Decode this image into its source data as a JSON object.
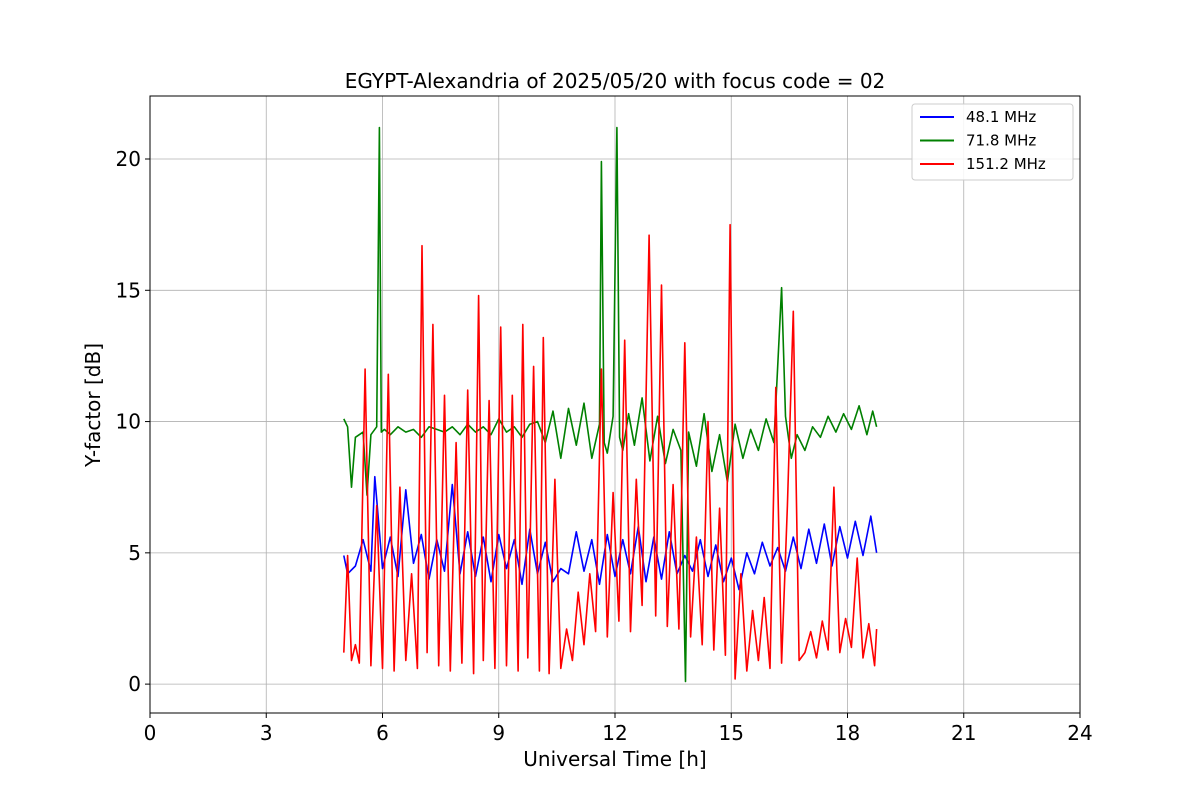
{
  "chart_data": {
    "type": "line",
    "title": "EGYPT-Alexandria of 2025/05/20 with focus code = 02",
    "xlabel": "Universal Time [h]",
    "ylabel": "Y-factor [dB]",
    "xlim": [
      0,
      24
    ],
    "ylim": [
      -1.1,
      22.4
    ],
    "xticks": [
      "0",
      "3",
      "6",
      "9",
      "12",
      "15",
      "18",
      "21",
      "24"
    ],
    "yticks": [
      "0",
      "5",
      "10",
      "15",
      "20"
    ],
    "grid": true,
    "legend_position": "top-right",
    "series": [
      {
        "name": "  48.1 MHz",
        "color": "#0000ff",
        "x": [
          5.0,
          5.1,
          5.3,
          5.5,
          5.7,
          5.8,
          6.0,
          6.2,
          6.4,
          6.6,
          6.8,
          7.0,
          7.2,
          7.4,
          7.6,
          7.8,
          8.0,
          8.2,
          8.4,
          8.6,
          8.8,
          9.0,
          9.2,
          9.4,
          9.6,
          9.8,
          10.0,
          10.2,
          10.4,
          10.6,
          10.8,
          11.0,
          11.2,
          11.4,
          11.6,
          11.8,
          12.0,
          12.2,
          12.4,
          12.6,
          12.8,
          13.0,
          13.2,
          13.4,
          13.6,
          13.8,
          14.0,
          14.2,
          14.4,
          14.6,
          14.8,
          15.0,
          15.2,
          15.4,
          15.6,
          15.8,
          16.0,
          16.2,
          16.4,
          16.6,
          16.8,
          17.0,
          17.2,
          17.4,
          17.6,
          17.8,
          18.0,
          18.2,
          18.4,
          18.6,
          18.75
        ],
        "y": [
          4.9,
          4.2,
          4.5,
          5.5,
          4.3,
          7.9,
          4.4,
          5.6,
          4.1,
          7.4,
          4.6,
          5.7,
          4.0,
          5.5,
          4.3,
          7.6,
          4.2,
          5.8,
          4.1,
          5.6,
          3.9,
          5.7,
          4.4,
          5.5,
          3.8,
          5.9,
          4.2,
          5.4,
          3.9,
          4.4,
          4.2,
          5.8,
          4.3,
          5.5,
          3.8,
          5.7,
          4.1,
          5.5,
          4.2,
          6.0,
          3.9,
          5.6,
          4.0,
          5.8,
          4.2,
          4.9,
          4.3,
          5.5,
          4.1,
          5.3,
          3.9,
          4.8,
          3.6,
          5.0,
          4.2,
          5.4,
          4.5,
          5.2,
          4.3,
          5.6,
          4.4,
          5.9,
          4.6,
          6.1,
          4.5,
          6.0,
          4.8,
          6.2,
          4.9,
          6.4,
          5.0
        ]
      },
      {
        "name": "  71.8 MHz",
        "color": "#008000",
        "x": [
          5.0,
          5.1,
          5.2,
          5.3,
          5.5,
          5.6,
          5.7,
          5.85,
          5.92,
          5.97,
          6.05,
          6.2,
          6.4,
          6.6,
          6.8,
          7.0,
          7.2,
          7.4,
          7.6,
          7.8,
          8.0,
          8.2,
          8.4,
          8.6,
          8.8,
          9.0,
          9.2,
          9.4,
          9.6,
          9.8,
          10.0,
          10.2,
          10.4,
          10.6,
          10.8,
          11.0,
          11.2,
          11.4,
          11.6,
          11.65,
          11.72,
          11.8,
          11.95,
          12.05,
          12.12,
          12.2,
          12.35,
          12.5,
          12.7,
          12.9,
          13.1,
          13.3,
          13.5,
          13.7,
          13.82,
          13.9,
          14.1,
          14.3,
          14.5,
          14.7,
          14.9,
          15.1,
          15.3,
          15.5,
          15.7,
          15.9,
          16.1,
          16.3,
          16.4,
          16.55,
          16.7,
          16.9,
          17.1,
          17.3,
          17.5,
          17.7,
          17.9,
          18.1,
          18.3,
          18.5,
          18.65,
          18.75
        ],
        "y": [
          10.1,
          9.8,
          7.5,
          9.4,
          9.6,
          7.2,
          9.5,
          9.8,
          21.2,
          9.6,
          9.7,
          9.5,
          9.8,
          9.6,
          9.7,
          9.4,
          9.8,
          9.7,
          9.6,
          9.8,
          9.5,
          9.9,
          9.6,
          9.8,
          9.5,
          10.1,
          9.6,
          9.8,
          9.4,
          9.9,
          10.0,
          9.2,
          10.4,
          8.6,
          10.5,
          9.1,
          10.7,
          8.6,
          9.9,
          19.9,
          9.2,
          8.8,
          10.2,
          21.2,
          9.4,
          8.9,
          10.3,
          9.1,
          10.9,
          8.5,
          10.2,
          8.4,
          9.7,
          8.9,
          0.1,
          9.6,
          8.3,
          10.3,
          8.1,
          9.5,
          7.7,
          9.9,
          8.6,
          9.7,
          8.9,
          10.1,
          9.2,
          15.1,
          10.2,
          8.6,
          9.5,
          8.9,
          9.8,
          9.4,
          10.2,
          9.6,
          10.3,
          9.7,
          10.6,
          9.5,
          10.4,
          9.8
        ]
      },
      {
        "name": "151.2 MHz",
        "color": "#ff0000",
        "x": [
          5.0,
          5.1,
          5.2,
          5.3,
          5.4,
          5.55,
          5.7,
          5.85,
          6.0,
          6.15,
          6.3,
          6.45,
          6.6,
          6.75,
          6.9,
          7.02,
          7.15,
          7.3,
          7.45,
          7.6,
          7.75,
          7.9,
          8.05,
          8.2,
          8.35,
          8.48,
          8.6,
          8.75,
          8.9,
          9.05,
          9.2,
          9.35,
          9.5,
          9.62,
          9.75,
          9.9,
          10.05,
          10.15,
          10.3,
          10.45,
          10.6,
          10.75,
          10.9,
          11.05,
          11.2,
          11.35,
          11.5,
          11.65,
          11.8,
          11.95,
          12.1,
          12.25,
          12.4,
          12.55,
          12.7,
          12.88,
          13.05,
          13.2,
          13.35,
          13.5,
          13.65,
          13.8,
          13.95,
          14.1,
          14.25,
          14.4,
          14.55,
          14.7,
          14.85,
          14.97,
          15.1,
          15.25,
          15.4,
          15.55,
          15.7,
          15.85,
          16.0,
          16.15,
          16.3,
          16.45,
          16.6,
          16.75,
          16.9,
          17.05,
          17.2,
          17.35,
          17.5,
          17.65,
          17.8,
          17.95,
          18.1,
          18.25,
          18.4,
          18.55,
          18.7,
          18.75
        ],
        "y": [
          1.2,
          4.9,
          0.9,
          1.5,
          0.8,
          12.0,
          0.7,
          6.8,
          0.6,
          11.8,
          0.5,
          7.5,
          0.9,
          4.2,
          0.6,
          16.7,
          1.2,
          13.7,
          0.7,
          11.0,
          0.5,
          9.2,
          0.8,
          11.2,
          0.4,
          14.8,
          0.9,
          10.8,
          0.6,
          13.6,
          0.7,
          11.0,
          0.5,
          13.7,
          1.0,
          12.1,
          0.5,
          13.2,
          0.4,
          7.8,
          0.6,
          2.1,
          0.9,
          3.5,
          1.5,
          4.2,
          2.0,
          12.0,
          1.8,
          7.3,
          2.4,
          13.1,
          2.0,
          7.8,
          3.0,
          17.1,
          2.6,
          15.2,
          2.2,
          7.6,
          2.1,
          13.0,
          1.8,
          5.6,
          1.5,
          10.0,
          1.3,
          6.7,
          1.1,
          17.5,
          0.2,
          4.2,
          0.5,
          2.8,
          0.9,
          3.3,
          0.6,
          11.3,
          0.8,
          6.8,
          14.2,
          0.9,
          1.2,
          2.0,
          1.0,
          2.4,
          1.3,
          7.5,
          1.2,
          2.5,
          1.4,
          4.8,
          1.0,
          2.3,
          0.7,
          2.1
        ]
      }
    ]
  }
}
